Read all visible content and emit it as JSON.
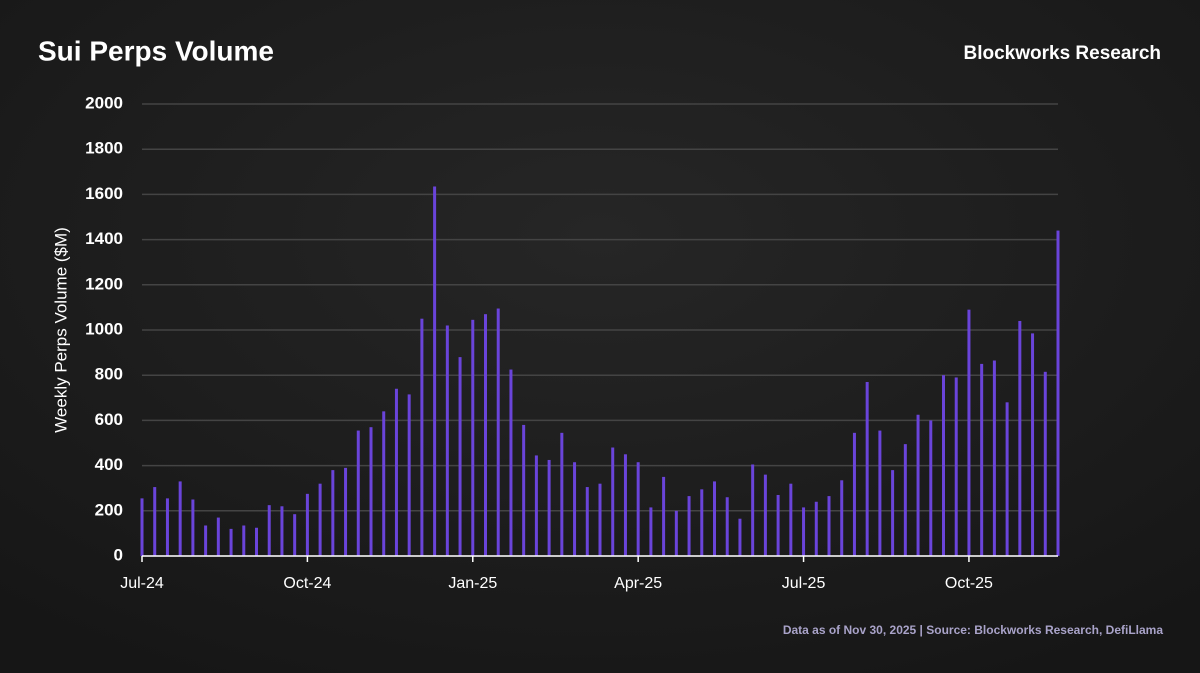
{
  "chart_data": {
    "type": "bar",
    "title": "Sui Perps Volume",
    "brand": "Blockworks Research",
    "ylabel": "Weekly Perps Volume ($M)",
    "footnote": "Data as of Nov 30, 2025 | Source: Blockworks Research, DefiLlama",
    "color": "#6a44da",
    "grid": true,
    "ylim": [
      0,
      2000
    ],
    "yticks": [
      0,
      200,
      400,
      600,
      800,
      1000,
      1200,
      1400,
      1600,
      1800,
      2000
    ],
    "categories": [
      "Jul-24",
      null,
      null,
      null,
      null,
      null,
      null,
      null,
      null,
      null,
      null,
      null,
      null,
      "Oct-24",
      null,
      null,
      null,
      null,
      null,
      null,
      null,
      null,
      null,
      null,
      null,
      null,
      "Jan-25",
      null,
      null,
      null,
      null,
      null,
      null,
      null,
      null,
      null,
      null,
      null,
      null,
      "Apr-25",
      null,
      null,
      null,
      null,
      null,
      null,
      null,
      null,
      null,
      null,
      null,
      null,
      "Jul-25",
      null,
      null,
      null,
      null,
      null,
      null,
      null,
      null,
      null,
      null,
      null,
      null,
      "Oct-25",
      null,
      null,
      null,
      null,
      null,
      null,
      null
    ],
    "values": [
      255,
      305,
      255,
      330,
      250,
      135,
      170,
      120,
      135,
      125,
      225,
      220,
      185,
      275,
      320,
      380,
      390,
      555,
      570,
      640,
      740,
      715,
      1050,
      1635,
      1020,
      880,
      1045,
      1070,
      1095,
      825,
      580,
      445,
      425,
      545,
      415,
      305,
      320,
      480,
      450,
      415,
      215,
      350,
      200,
      265,
      295,
      330,
      260,
      165,
      405,
      360,
      270,
      320,
      215,
      240,
      265,
      335,
      545,
      770,
      555,
      380,
      495,
      625,
      600,
      800,
      790,
      1090,
      850,
      865,
      680,
      1040,
      985,
      815,
      1440
    ]
  }
}
